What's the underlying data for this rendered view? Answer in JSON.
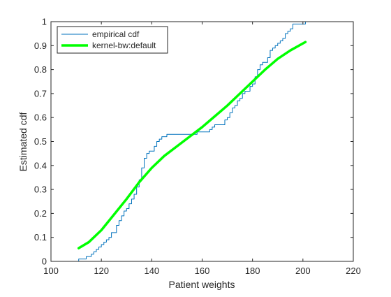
{
  "chart_data": {
    "type": "line",
    "title": "",
    "xlabel": "Patient weights",
    "ylabel": "Estimated cdf",
    "xlim": [
      100,
      220
    ],
    "ylim": [
      0,
      1
    ],
    "x_ticks": [
      "100",
      "120",
      "140",
      "160",
      "180",
      "200",
      "220"
    ],
    "y_ticks": [
      "0",
      "0.1",
      "0.2",
      "0.3",
      "0.4",
      "0.5",
      "0.6",
      "0.7",
      "0.8",
      "0.9",
      "1"
    ],
    "grid": false,
    "legend_position": "top-left",
    "series": [
      {
        "name": "empirical cdf",
        "style": "stairs",
        "color": "#0072bd",
        "x": [
          111,
          111,
          114,
          116,
          117,
          118,
          119,
          120,
          121,
          122,
          123,
          124,
          126,
          127,
          128,
          129,
          130,
          131,
          132,
          133,
          134,
          135,
          136,
          137,
          138,
          139,
          140,
          141,
          142,
          143,
          144,
          145,
          146,
          147,
          148,
          158,
          163,
          164,
          165,
          166,
          167,
          169,
          170,
          171,
          172,
          173,
          174,
          175,
          176,
          177,
          178,
          179,
          180,
          181,
          182,
          183,
          184,
          185,
          186,
          187,
          188,
          189,
          190,
          191,
          192,
          193,
          194,
          195,
          196,
          199,
          200,
          201
        ],
        "y": [
          0,
          0.01,
          0.02,
          0.03,
          0.04,
          0.05,
          0.06,
          0.07,
          0.08,
          0.09,
          0.1,
          0.12,
          0.15,
          0.17,
          0.19,
          0.21,
          0.22,
          0.24,
          0.26,
          0.28,
          0.31,
          0.34,
          0.39,
          0.43,
          0.45,
          0.46,
          0.46,
          0.48,
          0.5,
          0.51,
          0.52,
          0.52,
          0.53,
          0.53,
          0.53,
          0.54,
          0.55,
          0.56,
          0.57,
          0.57,
          0.57,
          0.59,
          0.6,
          0.62,
          0.64,
          0.65,
          0.67,
          0.68,
          0.7,
          0.71,
          0.71,
          0.73,
          0.74,
          0.77,
          0.8,
          0.82,
          0.83,
          0.83,
          0.85,
          0.88,
          0.89,
          0.9,
          0.91,
          0.92,
          0.93,
          0.95,
          0.96,
          0.97,
          0.99,
          0.99,
          0.99,
          1.0
        ]
      },
      {
        "name": "kernel-bw:default",
        "style": "line",
        "color": "#00ff00",
        "x": [
          111,
          115,
          120,
          125,
          130,
          135,
          140,
          145,
          150,
          155,
          160,
          165,
          170,
          175,
          180,
          185,
          190,
          195,
          201
        ],
        "y": [
          0.055,
          0.08,
          0.13,
          0.195,
          0.26,
          0.33,
          0.39,
          0.44,
          0.48,
          0.52,
          0.56,
          0.605,
          0.65,
          0.7,
          0.75,
          0.8,
          0.845,
          0.88,
          0.915
        ]
      }
    ]
  }
}
